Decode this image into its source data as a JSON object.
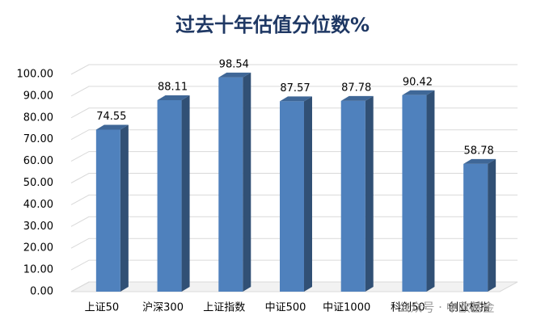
{
  "chart_data": {
    "type": "bar3d",
    "title": "过去十年估值分位数%",
    "categories": [
      "上证50",
      "沪深300",
      "上证指数",
      "中证500",
      "中证1000",
      "科创50",
      "创业板指"
    ],
    "values": [
      74.55,
      88.11,
      98.54,
      87.57,
      87.78,
      90.42,
      58.78
    ],
    "color": "#4f81bd",
    "ylim": [
      0,
      100
    ],
    "yticks": [
      {
        "value": 0,
        "label": "0.00"
      },
      {
        "value": 10,
        "label": "10.00"
      },
      {
        "value": 20,
        "label": "20.00"
      },
      {
        "value": 30,
        "label": "30.00"
      },
      {
        "value": 40,
        "label": "40.00"
      },
      {
        "value": 50,
        "label": "50.00"
      },
      {
        "value": 60,
        "label": "60.00"
      },
      {
        "value": 70,
        "label": "70.00"
      },
      {
        "value": 80,
        "label": "80.00"
      },
      {
        "value": 90,
        "label": "90.00"
      },
      {
        "value": 100,
        "label": "100.00"
      }
    ],
    "grid": true,
    "watermark": "公众号 · 中欧基金"
  }
}
